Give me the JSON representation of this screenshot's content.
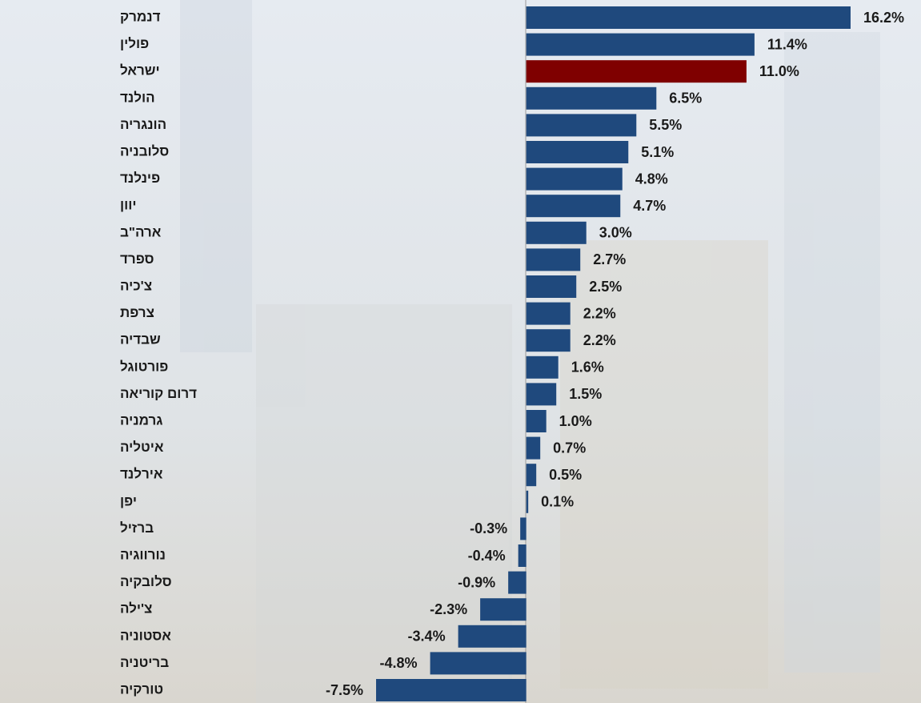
{
  "chart_data": {
    "type": "bar",
    "orientation": "horizontal",
    "categories": [
      "דנמרק",
      "פולין",
      "ישראל",
      "הולנד",
      "הונגריה",
      "סלובניה",
      "פינלנד",
      "יוון",
      "ארה\"ב",
      "ספרד",
      "צ'כיה",
      "צרפת",
      "שבדיה",
      "פורטוגל",
      "דרום קוריאה",
      "גרמניה",
      "איטליה",
      "אירלנד",
      "יפן",
      "ברזיל",
      "נורווגיה",
      "סלובקיה",
      "צ'ילה",
      "אסטוניה",
      "בריטניה",
      "טורקיה"
    ],
    "values": [
      16.2,
      11.4,
      11.0,
      6.5,
      5.5,
      5.1,
      4.8,
      4.7,
      3.0,
      2.7,
      2.5,
      2.2,
      2.2,
      1.6,
      1.5,
      1.0,
      0.7,
      0.5,
      0.1,
      -0.3,
      -0.4,
      -0.9,
      -2.3,
      -3.4,
      -4.8,
      -7.5
    ],
    "value_labels": [
      "16.2%",
      "11.4%",
      "11.0%",
      "6.5%",
      "5.5%",
      "5.1%",
      "4.8%",
      "4.7%",
      "3.0%",
      "2.7%",
      "2.5%",
      "2.2%",
      "2.2%",
      "1.6%",
      "1.5%",
      "1.0%",
      "0.7%",
      "0.5%",
      "0.1%",
      "-0.3%",
      "-0.4%",
      "-0.9%",
      "-2.3%",
      "-3.4%",
      "-4.8%",
      "-7.5%"
    ],
    "colors": [
      "#1f497d",
      "#1f497d",
      "#7f0000",
      "#1f497d",
      "#1f497d",
      "#1f497d",
      "#1f497d",
      "#1f497d",
      "#1f497d",
      "#1f497d",
      "#1f497d",
      "#1f497d",
      "#1f497d",
      "#1f497d",
      "#1f497d",
      "#1f497d",
      "#1f497d",
      "#1f497d",
      "#1f497d",
      "#1f497d",
      "#1f497d",
      "#1f497d",
      "#1f497d",
      "#1f497d",
      "#1f497d",
      "#1f497d"
    ]
  }
}
